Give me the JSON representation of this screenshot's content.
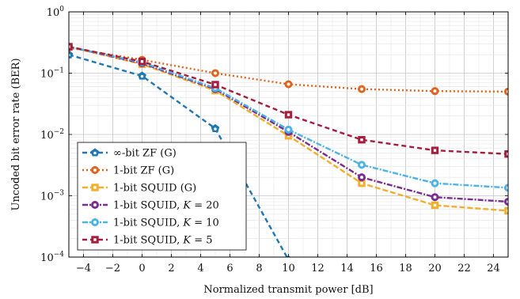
{
  "chart_data": {
    "type": "line",
    "xlabel": "Normalized transmit power [dB]",
    "ylabel": "Uncoded bit error rate (BER)",
    "xlim": [
      -5,
      25
    ],
    "ylim": [
      0.0001,
      1
    ],
    "yscale": "log",
    "grid": true,
    "legend_position": "bottom-left",
    "x_ticks": [
      -4,
      -2,
      0,
      2,
      4,
      6,
      8,
      10,
      12,
      14,
      16,
      18,
      20,
      22,
      24
    ],
    "y_ticks": [
      {
        "value": 0.0001,
        "base": "10",
        "exp": "−4"
      },
      {
        "value": 0.001,
        "base": "10",
        "exp": "−3"
      },
      {
        "value": 0.01,
        "base": "10",
        "exp": "−2"
      },
      {
        "value": 0.1,
        "base": "10",
        "exp": "−1"
      },
      {
        "value": 1,
        "base": "10",
        "exp": "0"
      }
    ],
    "series": [
      {
        "name": "∞-bit ZF (G)",
        "color": "#1f77b4",
        "marker": "pentagon",
        "dash": "6,4",
        "x": [
          -5,
          0,
          5,
          10,
          15,
          20,
          25
        ],
        "y": [
          0.2,
          0.09,
          0.0125,
          9e-05,
          null,
          null,
          null
        ]
      },
      {
        "name": "1-bit ZF (G)",
        "color": "#e0631f",
        "marker": "circle",
        "dash": "2,3",
        "x": [
          -5,
          0,
          5,
          10,
          15,
          20,
          25
        ],
        "y": [
          0.26,
          0.165,
          0.1,
          0.066,
          0.055,
          0.051,
          0.05
        ]
      },
      {
        "name": "1-bit SQUID (G)",
        "color": "#f2ae2c",
        "marker": "square",
        "dash": "7,3",
        "x": [
          -5,
          0,
          5,
          10,
          15,
          20,
          25
        ],
        "y": [
          0.27,
          0.14,
          0.052,
          0.0095,
          0.0016,
          0.0007,
          0.00057
        ]
      },
      {
        "name": "1-bit SQUID, K = 20",
        "color": "#7b2d8e",
        "marker": "circle",
        "dash": "7,2,2,2",
        "x": [
          -5,
          0,
          5,
          10,
          15,
          20,
          25
        ],
        "y": [
          0.27,
          0.145,
          0.055,
          0.011,
          0.002,
          0.00095,
          0.0008
        ]
      },
      {
        "name": "1-bit SQUID, K = 10",
        "color": "#4db3e6",
        "marker": "circle",
        "dash": "7,2,2,2",
        "x": [
          -5,
          0,
          5,
          10,
          15,
          20,
          25
        ],
        "y": [
          0.27,
          0.15,
          0.057,
          0.012,
          0.0032,
          0.0016,
          0.00135
        ]
      },
      {
        "name": "1-bit SQUID, K = 5",
        "color": "#a51c3c",
        "marker": "square",
        "dash": "6,4",
        "x": [
          -5,
          0,
          5,
          10,
          15,
          20,
          25
        ],
        "y": [
          0.27,
          0.155,
          0.065,
          0.021,
          0.0082,
          0.0055,
          0.0048
        ]
      }
    ]
  },
  "legend": {
    "items": [
      {
        "pre": "∞-bit ZF (G)",
        "k": "",
        "post": ""
      },
      {
        "pre": "1-bit ZF (G)",
        "k": "",
        "post": ""
      },
      {
        "pre": "1-bit SQUID (G)",
        "k": "",
        "post": ""
      },
      {
        "pre": "1-bit SQUID, ",
        "k": "K",
        "post": " = 20"
      },
      {
        "pre": "1-bit SQUID, ",
        "k": "K",
        "post": " = 10"
      },
      {
        "pre": "1-bit SQUID, ",
        "k": "K",
        "post": " = 5"
      }
    ]
  }
}
